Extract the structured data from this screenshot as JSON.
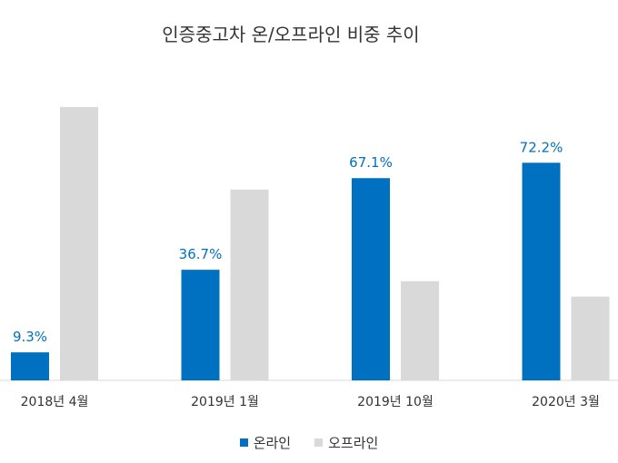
{
  "chart_data": {
    "type": "bar",
    "title": "인증중고차 온/오프라인 비중 추이",
    "categories": [
      "2018년 4월",
      "2019년 1월",
      "2019년 10월",
      "2020년 3월"
    ],
    "series": [
      {
        "name": "온라인",
        "values": [
          9.3,
          36.7,
          67.1,
          72.2
        ],
        "labels": [
          "9.3%",
          "36.7%",
          "67.1%",
          "72.2%"
        ],
        "color": "#0070c0"
      },
      {
        "name": "오프라인",
        "values": [
          90.7,
          63.3,
          32.9,
          27.8
        ],
        "color": "#d9d9d9"
      }
    ],
    "ylim": [
      0,
      100
    ],
    "grid": false,
    "legend": "bottom"
  }
}
